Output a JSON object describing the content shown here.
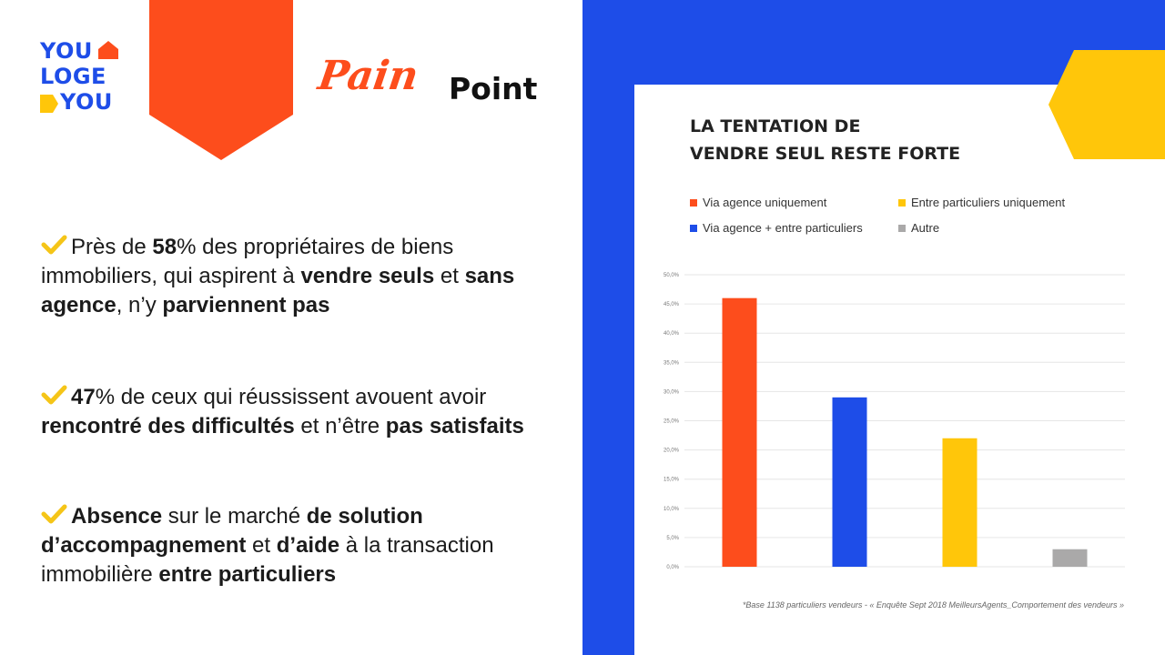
{
  "logo": {
    "line1": "YOU",
    "line2": "LOGE",
    "line3": "YOU"
  },
  "brand": {
    "pain": "Pain",
    "point": "Point"
  },
  "colors": {
    "orange": "#fd4d1c",
    "blue": "#1e4de8",
    "yellow": "#ffc60a",
    "gray": "#aaa9a9",
    "check": "#f5c518"
  },
  "icons": {
    "check": "check-icon",
    "house": "house-roof-icon",
    "tag": "tag-icon",
    "hexagon": "hexagon-shape"
  },
  "bullets": [
    {
      "segments": [
        {
          "text": "Près de ",
          "bold": false
        },
        {
          "text": "58",
          "bold": true
        },
        {
          "text": "% des propriétaires de biens immobiliers, qui aspirent à ",
          "bold": false
        },
        {
          "text": "vendre seuls",
          "bold": true
        },
        {
          "text": " et ",
          "bold": false
        },
        {
          "text": "sans agence",
          "bold": true
        },
        {
          "text": ", n’y ",
          "bold": false
        },
        {
          "text": "parviennent pas",
          "bold": true
        }
      ]
    },
    {
      "segments": [
        {
          "text": "47",
          "bold": true
        },
        {
          "text": "% de ceux qui réussissent avouent avoir ",
          "bold": false
        },
        {
          "text": "rencontré des difficultés",
          "bold": true
        },
        {
          "text": " et n’être ",
          "bold": false
        },
        {
          "text": "pas satisfaits",
          "bold": true
        }
      ]
    },
    {
      "segments": [
        {
          "text": "Absence",
          "bold": true
        },
        {
          "text": " sur le marché ",
          "bold": false
        },
        {
          "text": "de solution d’accompagnement",
          "bold": true
        },
        {
          "text": " et ",
          "bold": false
        },
        {
          "text": "d’aide",
          "bold": true
        },
        {
          "text": " à la transaction immobilière ",
          "bold": false
        },
        {
          "text": "entre particuliers",
          "bold": true
        }
      ]
    }
  ],
  "chart_data": {
    "type": "bar",
    "title_line1": "LA TENTATION DE",
    "title_line2": "VENDRE SEUL RESTE FORTE",
    "series": [
      {
        "name": "Via agence uniquement",
        "value": 46,
        "color": "#fd4d1c"
      },
      {
        "name": "Via agence + entre particuliers",
        "value": 29,
        "color": "#1e4de8"
      },
      {
        "name": "Entre particuliers uniquement",
        "value": 22,
        "color": "#ffc60a"
      },
      {
        "name": "Autre",
        "value": 3,
        "color": "#aaa9a9"
      }
    ],
    "yticks": [
      "0,0%",
      "5,0%",
      "10,0%",
      "15,0%",
      "20,0%",
      "25,0%",
      "30,0%",
      "35,0%",
      "40,0%",
      "45,0%",
      "50,0%"
    ],
    "ylim": [
      0,
      50
    ],
    "grid": true,
    "legend_position": "top",
    "footnote": "*Base 1138 particuliers vendeurs - « Enquête Sept 2018 MeilleursAgents_Comportement des vendeurs »"
  }
}
